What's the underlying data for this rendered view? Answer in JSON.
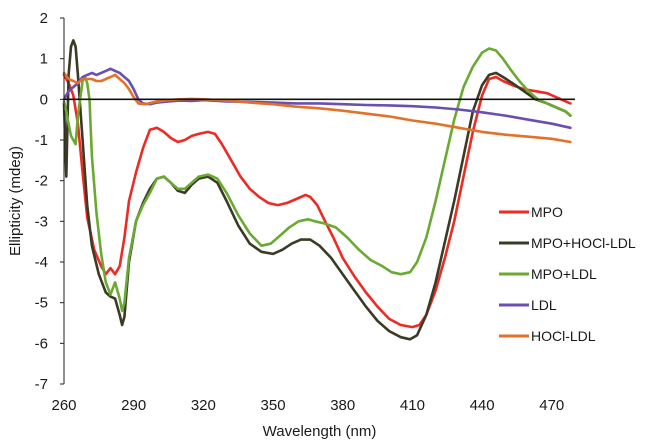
{
  "chart_data": {
    "type": "line",
    "title": "",
    "xlabel": "Wavelength (nm)",
    "ylabel": "Ellipticity (mdeg)",
    "xlim": [
      260,
      480
    ],
    "ylim": [
      -7,
      2
    ],
    "xticks": [
      260,
      290,
      320,
      350,
      380,
      410,
      440,
      470
    ],
    "yticks": [
      -7,
      -6,
      -5,
      -4,
      -3,
      -2,
      -1,
      0,
      1,
      2
    ],
    "grid": false,
    "legend_position": "right",
    "zero_line": true,
    "series": [
      {
        "name": "MPO",
        "color": "#ee2a24",
        "points": [
          [
            260,
            0.6
          ],
          [
            262,
            0.4
          ],
          [
            264,
            0.1
          ],
          [
            266,
            -0.6
          ],
          [
            268,
            -1.8
          ],
          [
            270,
            -2.9
          ],
          [
            273,
            -3.7
          ],
          [
            276,
            -4.1
          ],
          [
            278,
            -4.3
          ],
          [
            280,
            -4.15
          ],
          [
            282,
            -4.3
          ],
          [
            284,
            -4.1
          ],
          [
            286,
            -3.4
          ],
          [
            288,
            -2.5
          ],
          [
            291,
            -1.8
          ],
          [
            294,
            -1.2
          ],
          [
            297,
            -0.75
          ],
          [
            300,
            -0.7
          ],
          [
            303,
            -0.8
          ],
          [
            306,
            -0.95
          ],
          [
            309,
            -1.05
          ],
          [
            312,
            -1.0
          ],
          [
            315,
            -0.9
          ],
          [
            318,
            -0.85
          ],
          [
            322,
            -0.8
          ],
          [
            325,
            -0.85
          ],
          [
            328,
            -1.1
          ],
          [
            332,
            -1.5
          ],
          [
            336,
            -1.9
          ],
          [
            340,
            -2.2
          ],
          [
            344,
            -2.4
          ],
          [
            348,
            -2.55
          ],
          [
            352,
            -2.6
          ],
          [
            356,
            -2.55
          ],
          [
            360,
            -2.45
          ],
          [
            364,
            -2.35
          ],
          [
            366,
            -2.4
          ],
          [
            369,
            -2.6
          ],
          [
            372,
            -2.95
          ],
          [
            376,
            -3.4
          ],
          [
            380,
            -3.9
          ],
          [
            385,
            -4.35
          ],
          [
            390,
            -4.75
          ],
          [
            395,
            -5.1
          ],
          [
            400,
            -5.4
          ],
          [
            405,
            -5.55
          ],
          [
            410,
            -5.6
          ],
          [
            413,
            -5.55
          ],
          [
            416,
            -5.3
          ],
          [
            420,
            -4.7
          ],
          [
            424,
            -3.9
          ],
          [
            428,
            -3.0
          ],
          [
            432,
            -1.9
          ],
          [
            436,
            -0.8
          ],
          [
            440,
            0.1
          ],
          [
            443,
            0.5
          ],
          [
            446,
            0.55
          ],
          [
            449,
            0.45
          ],
          [
            453,
            0.35
          ],
          [
            458,
            0.25
          ],
          [
            463,
            0.2
          ],
          [
            468,
            0.15
          ],
          [
            472,
            0.05
          ],
          [
            476,
            -0.05
          ],
          [
            478,
            -0.1
          ]
        ]
      },
      {
        "name": "MPO+HOCl-LDL",
        "color": "#3b3a24",
        "points": [
          [
            260,
            -0.1
          ],
          [
            261,
            -1.9
          ],
          [
            262,
            0.6
          ],
          [
            263,
            1.3
          ],
          [
            264,
            1.45
          ],
          [
            265,
            1.3
          ],
          [
            266,
            0.6
          ],
          [
            268,
            -1.0
          ],
          [
            270,
            -2.6
          ],
          [
            272,
            -3.6
          ],
          [
            275,
            -4.3
          ],
          [
            278,
            -4.75
          ],
          [
            280,
            -4.85
          ],
          [
            282,
            -4.9
          ],
          [
            284,
            -5.3
          ],
          [
            285,
            -5.55
          ],
          [
            286,
            -5.35
          ],
          [
            288,
            -4.0
          ],
          [
            291,
            -3.0
          ],
          [
            294,
            -2.55
          ],
          [
            297,
            -2.2
          ],
          [
            300,
            -1.95
          ],
          [
            303,
            -1.9
          ],
          [
            306,
            -2.05
          ],
          [
            309,
            -2.25
          ],
          [
            312,
            -2.3
          ],
          [
            315,
            -2.1
          ],
          [
            318,
            -1.95
          ],
          [
            322,
            -1.9
          ],
          [
            326,
            -2.05
          ],
          [
            330,
            -2.5
          ],
          [
            335,
            -3.1
          ],
          [
            340,
            -3.55
          ],
          [
            345,
            -3.75
          ],
          [
            350,
            -3.8
          ],
          [
            354,
            -3.7
          ],
          [
            358,
            -3.55
          ],
          [
            362,
            -3.45
          ],
          [
            366,
            -3.45
          ],
          [
            370,
            -3.6
          ],
          [
            375,
            -3.9
          ],
          [
            380,
            -4.3
          ],
          [
            385,
            -4.7
          ],
          [
            390,
            -5.1
          ],
          [
            395,
            -5.45
          ],
          [
            400,
            -5.7
          ],
          [
            405,
            -5.85
          ],
          [
            409,
            -5.9
          ],
          [
            412,
            -5.8
          ],
          [
            416,
            -5.3
          ],
          [
            420,
            -4.5
          ],
          [
            424,
            -3.5
          ],
          [
            428,
            -2.5
          ],
          [
            432,
            -1.4
          ],
          [
            436,
            -0.3
          ],
          [
            440,
            0.35
          ],
          [
            443,
            0.6
          ],
          [
            446,
            0.65
          ],
          [
            449,
            0.55
          ],
          [
            453,
            0.4
          ],
          [
            458,
            0.2
          ],
          [
            463,
            0.0
          ],
          [
            468,
            -0.1
          ],
          [
            472,
            -0.2
          ],
          [
            476,
            -0.3
          ],
          [
            478,
            -0.4
          ]
        ]
      },
      {
        "name": "MPO+LDL",
        "color": "#6aaa32",
        "points": [
          [
            260,
            -0.05
          ],
          [
            261,
            -0.3
          ],
          [
            262,
            -0.6
          ],
          [
            263,
            -0.9
          ],
          [
            265,
            -1.1
          ],
          [
            266,
            -0.4
          ],
          [
            268,
            0.45
          ],
          [
            269,
            0.55
          ],
          [
            270,
            0.4
          ],
          [
            271,
            0.0
          ],
          [
            272,
            -1.4
          ],
          [
            274,
            -2.8
          ],
          [
            276,
            -3.8
          ],
          [
            278,
            -4.5
          ],
          [
            280,
            -4.8
          ],
          [
            282,
            -4.5
          ],
          [
            284,
            -4.9
          ],
          [
            285,
            -5.2
          ],
          [
            286,
            -5.0
          ],
          [
            288,
            -3.9
          ],
          [
            291,
            -3.0
          ],
          [
            294,
            -2.6
          ],
          [
            297,
            -2.3
          ],
          [
            300,
            -1.95
          ],
          [
            303,
            -1.9
          ],
          [
            306,
            -2.05
          ],
          [
            309,
            -2.2
          ],
          [
            312,
            -2.2
          ],
          [
            315,
            -2.05
          ],
          [
            318,
            -1.9
          ],
          [
            322,
            -1.85
          ],
          [
            326,
            -1.95
          ],
          [
            330,
            -2.3
          ],
          [
            335,
            -2.85
          ],
          [
            340,
            -3.3
          ],
          [
            345,
            -3.6
          ],
          [
            349,
            -3.55
          ],
          [
            353,
            -3.35
          ],
          [
            357,
            -3.15
          ],
          [
            361,
            -3.0
          ],
          [
            365,
            -2.95
          ],
          [
            368,
            -3.0
          ],
          [
            372,
            -3.05
          ],
          [
            377,
            -3.15
          ],
          [
            382,
            -3.4
          ],
          [
            387,
            -3.7
          ],
          [
            392,
            -3.95
          ],
          [
            397,
            -4.1
          ],
          [
            401,
            -4.25
          ],
          [
            405,
            -4.3
          ],
          [
            409,
            -4.25
          ],
          [
            412,
            -4.0
          ],
          [
            416,
            -3.4
          ],
          [
            420,
            -2.5
          ],
          [
            424,
            -1.5
          ],
          [
            428,
            -0.5
          ],
          [
            432,
            0.3
          ],
          [
            436,
            0.8
          ],
          [
            440,
            1.15
          ],
          [
            443,
            1.25
          ],
          [
            446,
            1.2
          ],
          [
            449,
            1.0
          ],
          [
            452,
            0.75
          ],
          [
            456,
            0.45
          ],
          [
            460,
            0.2
          ],
          [
            464,
            0.0
          ],
          [
            468,
            -0.1
          ],
          [
            472,
            -0.2
          ],
          [
            476,
            -0.3
          ],
          [
            478,
            -0.4
          ]
        ]
      },
      {
        "name": "LDL",
        "color": "#6a4eb0",
        "points": [
          [
            260,
            0.0
          ],
          [
            262,
            0.2
          ],
          [
            264,
            0.3
          ],
          [
            266,
            0.4
          ],
          [
            268,
            0.55
          ],
          [
            270,
            0.6
          ],
          [
            272,
            0.65
          ],
          [
            274,
            0.6
          ],
          [
            276,
            0.65
          ],
          [
            278,
            0.7
          ],
          [
            280,
            0.75
          ],
          [
            282,
            0.7
          ],
          [
            284,
            0.65
          ],
          [
            286,
            0.55
          ],
          [
            288,
            0.45
          ],
          [
            290,
            0.25
          ],
          [
            292,
            0.0
          ],
          [
            294,
            -0.1
          ],
          [
            297,
            -0.12
          ],
          [
            300,
            -0.08
          ],
          [
            305,
            -0.05
          ],
          [
            310,
            -0.03
          ],
          [
            315,
            -0.04
          ],
          [
            320,
            -0.02
          ],
          [
            330,
            -0.05
          ],
          [
            340,
            -0.06
          ],
          [
            350,
            -0.08
          ],
          [
            360,
            -0.1
          ],
          [
            370,
            -0.1
          ],
          [
            380,
            -0.12
          ],
          [
            390,
            -0.14
          ],
          [
            400,
            -0.15
          ],
          [
            410,
            -0.17
          ],
          [
            420,
            -0.2
          ],
          [
            430,
            -0.25
          ],
          [
            440,
            -0.32
          ],
          [
            450,
            -0.4
          ],
          [
            460,
            -0.5
          ],
          [
            470,
            -0.6
          ],
          [
            478,
            -0.7
          ]
        ]
      },
      {
        "name": "HOCl-LDL",
        "color": "#e2722a",
        "points": [
          [
            260,
            0.65
          ],
          [
            262,
            0.5
          ],
          [
            264,
            0.45
          ],
          [
            266,
            0.4
          ],
          [
            268,
            0.5
          ],
          [
            270,
            0.5
          ],
          [
            272,
            0.5
          ],
          [
            274,
            0.45
          ],
          [
            276,
            0.45
          ],
          [
            278,
            0.5
          ],
          [
            280,
            0.55
          ],
          [
            282,
            0.6
          ],
          [
            284,
            0.5
          ],
          [
            286,
            0.4
          ],
          [
            288,
            0.25
          ],
          [
            290,
            0.05
          ],
          [
            292,
            -0.1
          ],
          [
            295,
            -0.12
          ],
          [
            300,
            -0.05
          ],
          [
            305,
            -0.02
          ],
          [
            310,
            0.0
          ],
          [
            315,
            0.01
          ],
          [
            320,
            0.0
          ],
          [
            330,
            -0.03
          ],
          [
            340,
            -0.08
          ],
          [
            350,
            -0.12
          ],
          [
            360,
            -0.18
          ],
          [
            370,
            -0.22
          ],
          [
            380,
            -0.28
          ],
          [
            390,
            -0.35
          ],
          [
            400,
            -0.42
          ],
          [
            410,
            -0.52
          ],
          [
            420,
            -0.6
          ],
          [
            430,
            -0.7
          ],
          [
            440,
            -0.8
          ],
          [
            450,
            -0.87
          ],
          [
            460,
            -0.92
          ],
          [
            470,
            -0.97
          ],
          [
            478,
            -1.05
          ]
        ]
      }
    ]
  }
}
